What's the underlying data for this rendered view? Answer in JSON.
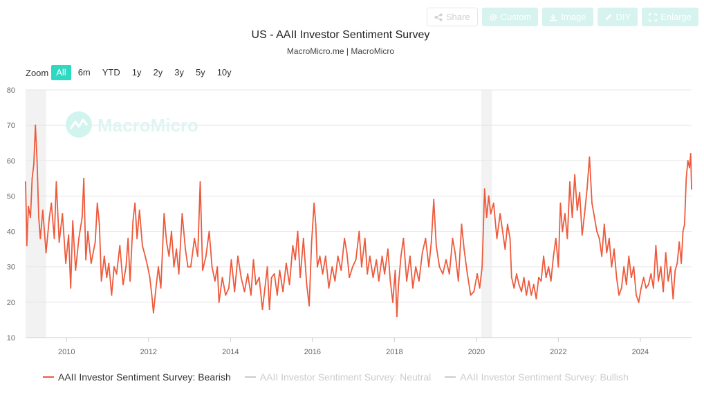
{
  "toolbar": {
    "share": "Share",
    "custom": "Custom",
    "image": "Image",
    "diy": "DIY",
    "enlarge": "Enlarge"
  },
  "zoom": {
    "label": "Zoom",
    "options": [
      "All",
      "6m",
      "YTD",
      "1y",
      "2y",
      "3y",
      "5y",
      "10y"
    ],
    "selected": "All"
  },
  "watermark": "MacroMicro",
  "colors": {
    "bearish": "#ee5a3c",
    "inactive": "#cccccc",
    "accent": "#2fd8c0",
    "recession_band": "#f2f2f2"
  },
  "chart_data": {
    "type": "line",
    "title": "US - AAII Investor Sentiment Survey",
    "subtitle": "MacroMicro.me | MacroMicro",
    "xlabel": "",
    "ylabel": "",
    "x_range": [
      2009.0,
      2025.25
    ],
    "ylim": [
      10,
      80
    ],
    "y_ticks": [
      10,
      20,
      30,
      40,
      50,
      60,
      70,
      80
    ],
    "x_ticks": [
      "2010",
      "2012",
      "2014",
      "2016",
      "2018",
      "2020",
      "2022",
      "2024"
    ],
    "x_tick_values": [
      2010,
      2012,
      2014,
      2016,
      2018,
      2020,
      2022,
      2024
    ],
    "grid": true,
    "shaded_periods": [
      [
        2009.0,
        2009.5
      ],
      [
        2020.12,
        2020.38
      ]
    ],
    "legend_position": "bottom-left",
    "series": [
      {
        "name": "AAII Investor Sentiment Survey: Bearish",
        "visible": true,
        "points": [
          [
            2009.0,
            54
          ],
          [
            2009.03,
            36
          ],
          [
            2009.07,
            47
          ],
          [
            2009.12,
            44
          ],
          [
            2009.16,
            55
          ],
          [
            2009.2,
            59
          ],
          [
            2009.24,
            70
          ],
          [
            2009.28,
            60
          ],
          [
            2009.32,
            44
          ],
          [
            2009.36,
            38
          ],
          [
            2009.42,
            46
          ],
          [
            2009.5,
            34
          ],
          [
            2009.58,
            44
          ],
          [
            2009.63,
            48
          ],
          [
            2009.7,
            38
          ],
          [
            2009.75,
            54
          ],
          [
            2009.82,
            37
          ],
          [
            2009.9,
            45
          ],
          [
            2009.98,
            31
          ],
          [
            2010.05,
            39
          ],
          [
            2010.1,
            24
          ],
          [
            2010.15,
            43
          ],
          [
            2010.22,
            29
          ],
          [
            2010.3,
            38
          ],
          [
            2010.38,
            44
          ],
          [
            2010.42,
            55
          ],
          [
            2010.47,
            32
          ],
          [
            2010.52,
            40
          ],
          [
            2010.6,
            31
          ],
          [
            2010.7,
            37
          ],
          [
            2010.75,
            48
          ],
          [
            2010.8,
            42
          ],
          [
            2010.85,
            26
          ],
          [
            2010.92,
            33
          ],
          [
            2010.98,
            27
          ],
          [
            2011.03,
            31
          ],
          [
            2011.1,
            22
          ],
          [
            2011.16,
            30
          ],
          [
            2011.22,
            28
          ],
          [
            2011.3,
            36
          ],
          [
            2011.38,
            25
          ],
          [
            2011.45,
            30
          ],
          [
            2011.5,
            38
          ],
          [
            2011.55,
            26
          ],
          [
            2011.62,
            43
          ],
          [
            2011.67,
            48
          ],
          [
            2011.72,
            38
          ],
          [
            2011.78,
            46
          ],
          [
            2011.85,
            36
          ],
          [
            2011.92,
            33
          ],
          [
            2011.98,
            30
          ],
          [
            2012.03,
            27
          ],
          [
            2012.08,
            22
          ],
          [
            2012.12,
            17
          ],
          [
            2012.18,
            24
          ],
          [
            2012.24,
            30
          ],
          [
            2012.3,
            24
          ],
          [
            2012.38,
            45
          ],
          [
            2012.44,
            37
          ],
          [
            2012.5,
            33
          ],
          [
            2012.56,
            40
          ],
          [
            2012.62,
            30
          ],
          [
            2012.68,
            35
          ],
          [
            2012.74,
            28
          ],
          [
            2012.82,
            45
          ],
          [
            2012.9,
            35
          ],
          [
            2012.96,
            30
          ],
          [
            2013.03,
            30
          ],
          [
            2013.12,
            38
          ],
          [
            2013.2,
            33
          ],
          [
            2013.26,
            54
          ],
          [
            2013.32,
            29
          ],
          [
            2013.4,
            33
          ],
          [
            2013.48,
            40
          ],
          [
            2013.55,
            30
          ],
          [
            2013.62,
            26
          ],
          [
            2013.68,
            30
          ],
          [
            2013.72,
            20
          ],
          [
            2013.8,
            27
          ],
          [
            2013.88,
            22
          ],
          [
            2013.96,
            24
          ],
          [
            2014.02,
            32
          ],
          [
            2014.1,
            23
          ],
          [
            2014.18,
            33
          ],
          [
            2014.26,
            27
          ],
          [
            2014.34,
            23
          ],
          [
            2014.42,
            28
          ],
          [
            2014.5,
            22
          ],
          [
            2014.56,
            32
          ],
          [
            2014.62,
            25
          ],
          [
            2014.7,
            27
          ],
          [
            2014.78,
            18
          ],
          [
            2014.84,
            24
          ],
          [
            2014.9,
            30
          ],
          [
            2014.95,
            18
          ],
          [
            2015.0,
            27
          ],
          [
            2015.07,
            28
          ],
          [
            2015.14,
            22
          ],
          [
            2015.2,
            29
          ],
          [
            2015.28,
            23
          ],
          [
            2015.36,
            31
          ],
          [
            2015.44,
            25
          ],
          [
            2015.52,
            36
          ],
          [
            2015.58,
            32
          ],
          [
            2015.64,
            40
          ],
          [
            2015.7,
            27
          ],
          [
            2015.78,
            38
          ],
          [
            2015.86,
            25
          ],
          [
            2015.92,
            19
          ],
          [
            2015.98,
            37
          ],
          [
            2016.04,
            48
          ],
          [
            2016.08,
            42
          ],
          [
            2016.12,
            30
          ],
          [
            2016.18,
            33
          ],
          [
            2016.25,
            28
          ],
          [
            2016.32,
            33
          ],
          [
            2016.4,
            24
          ],
          [
            2016.48,
            30
          ],
          [
            2016.55,
            26
          ],
          [
            2016.62,
            33
          ],
          [
            2016.7,
            29
          ],
          [
            2016.78,
            38
          ],
          [
            2016.84,
            34
          ],
          [
            2016.9,
            27
          ],
          [
            2016.98,
            30
          ],
          [
            2017.06,
            32
          ],
          [
            2017.14,
            40
          ],
          [
            2017.2,
            30
          ],
          [
            2017.28,
            38
          ],
          [
            2017.34,
            28
          ],
          [
            2017.4,
            33
          ],
          [
            2017.48,
            27
          ],
          [
            2017.56,
            32
          ],
          [
            2017.62,
            26
          ],
          [
            2017.7,
            33
          ],
          [
            2017.76,
            28
          ],
          [
            2017.84,
            35
          ],
          [
            2017.9,
            26
          ],
          [
            2017.96,
            20
          ],
          [
            2018.02,
            29
          ],
          [
            2018.06,
            16
          ],
          [
            2018.1,
            25
          ],
          [
            2018.16,
            33
          ],
          [
            2018.22,
            38
          ],
          [
            2018.3,
            26
          ],
          [
            2018.38,
            33
          ],
          [
            2018.45,
            24
          ],
          [
            2018.52,
            30
          ],
          [
            2018.6,
            26
          ],
          [
            2018.68,
            34
          ],
          [
            2018.76,
            38
          ],
          [
            2018.84,
            30
          ],
          [
            2018.9,
            37
          ],
          [
            2018.96,
            49
          ],
          [
            2019.02,
            36
          ],
          [
            2019.1,
            30
          ],
          [
            2019.18,
            28
          ],
          [
            2019.26,
            32
          ],
          [
            2019.34,
            28
          ],
          [
            2019.42,
            38
          ],
          [
            2019.48,
            34
          ],
          [
            2019.56,
            26
          ],
          [
            2019.64,
            42
          ],
          [
            2019.7,
            35
          ],
          [
            2019.78,
            28
          ],
          [
            2019.86,
            22
          ],
          [
            2019.94,
            23
          ],
          [
            2020.02,
            28
          ],
          [
            2020.08,
            24
          ],
          [
            2020.14,
            30
          ],
          [
            2020.2,
            52
          ],
          [
            2020.25,
            44
          ],
          [
            2020.3,
            50
          ],
          [
            2020.35,
            45
          ],
          [
            2020.42,
            48
          ],
          [
            2020.5,
            38
          ],
          [
            2020.58,
            45
          ],
          [
            2020.64,
            40
          ],
          [
            2020.7,
            35
          ],
          [
            2020.76,
            42
          ],
          [
            2020.82,
            38
          ],
          [
            2020.86,
            27
          ],
          [
            2020.92,
            24
          ],
          [
            2020.98,
            28
          ],
          [
            2021.04,
            25
          ],
          [
            2021.1,
            23
          ],
          [
            2021.16,
            27
          ],
          [
            2021.22,
            22
          ],
          [
            2021.28,
            26
          ],
          [
            2021.34,
            22
          ],
          [
            2021.4,
            25
          ],
          [
            2021.46,
            21
          ],
          [
            2021.52,
            27
          ],
          [
            2021.58,
            26
          ],
          [
            2021.64,
            33
          ],
          [
            2021.7,
            27
          ],
          [
            2021.76,
            30
          ],
          [
            2021.82,
            26
          ],
          [
            2021.88,
            33
          ],
          [
            2021.94,
            38
          ],
          [
            2022.0,
            30
          ],
          [
            2022.05,
            48
          ],
          [
            2022.1,
            40
          ],
          [
            2022.16,
            45
          ],
          [
            2022.22,
            38
          ],
          [
            2022.28,
            54
          ],
          [
            2022.34,
            44
          ],
          [
            2022.4,
            56
          ],
          [
            2022.46,
            46
          ],
          [
            2022.52,
            51
          ],
          [
            2022.58,
            39
          ],
          [
            2022.64,
            45
          ],
          [
            2022.7,
            52
          ],
          [
            2022.76,
            61
          ],
          [
            2022.82,
            48
          ],
          [
            2022.88,
            44
          ],
          [
            2022.94,
            40
          ],
          [
            2023.0,
            38
          ],
          [
            2023.06,
            33
          ],
          [
            2023.12,
            42
          ],
          [
            2023.18,
            34
          ],
          [
            2023.24,
            38
          ],
          [
            2023.3,
            30
          ],
          [
            2023.36,
            35
          ],
          [
            2023.42,
            27
          ],
          [
            2023.48,
            22
          ],
          [
            2023.54,
            24
          ],
          [
            2023.6,
            30
          ],
          [
            2023.66,
            25
          ],
          [
            2023.72,
            33
          ],
          [
            2023.78,
            27
          ],
          [
            2023.84,
            30
          ],
          [
            2023.9,
            22
          ],
          [
            2023.96,
            20
          ],
          [
            2024.02,
            24
          ],
          [
            2024.08,
            27
          ],
          [
            2024.14,
            24
          ],
          [
            2024.2,
            25
          ],
          [
            2024.26,
            28
          ],
          [
            2024.32,
            24
          ],
          [
            2024.38,
            36
          ],
          [
            2024.44,
            26
          ],
          [
            2024.5,
            30
          ],
          [
            2024.56,
            23
          ],
          [
            2024.62,
            34
          ],
          [
            2024.68,
            26
          ],
          [
            2024.74,
            30
          ],
          [
            2024.8,
            21
          ],
          [
            2024.85,
            29
          ],
          [
            2024.9,
            31
          ],
          [
            2024.95,
            37
          ],
          [
            2025.0,
            31
          ],
          [
            2025.04,
            40
          ],
          [
            2025.08,
            42
          ],
          [
            2025.12,
            55
          ],
          [
            2025.16,
            60
          ],
          [
            2025.2,
            58
          ],
          [
            2025.23,
            62
          ],
          [
            2025.25,
            52
          ]
        ]
      },
      {
        "name": "AAII Investor Sentiment Survey: Neutral",
        "visible": false,
        "points": []
      },
      {
        "name": "AAII Investor Sentiment Survey: Bullish",
        "visible": false,
        "points": []
      }
    ]
  }
}
